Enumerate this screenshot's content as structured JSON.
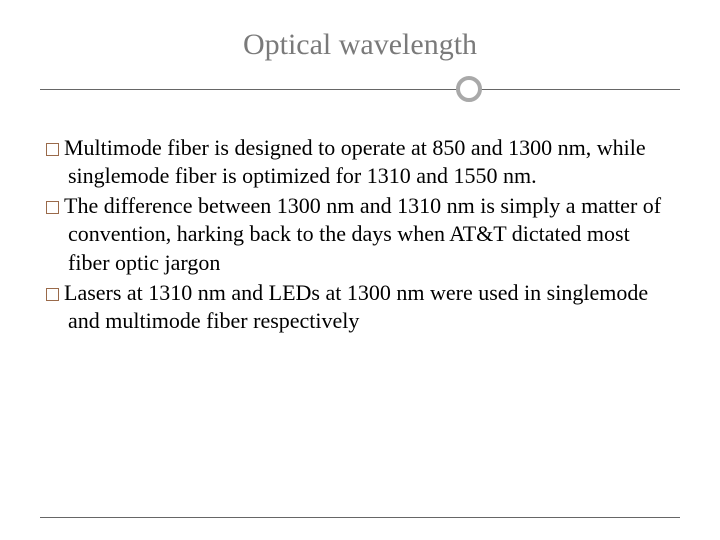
{
  "slide": {
    "title": "Optical wavelength",
    "title_color": "#7a7a7a",
    "title_fontsize": 30,
    "divider_color": "#666666",
    "circle_border_color": "#a9a9a9",
    "circle_position_pct": 67,
    "bullet_border_color": "#9a6a4a",
    "body_fontsize": 22,
    "body_color": "#000000",
    "background_color": "#ffffff",
    "bullets": [
      "Multimode fiber is designed to operate at 850 and 1300 nm, while singlemode fiber is optimized for 1310 and 1550 nm.",
      "The difference between 1300 nm and 1310 nm is simply a matter of convention, harking back to the days when AT&T dictated most fiber optic jargon",
      "Lasers at 1310 nm and LEDs at 1300 nm were used in singlemode and multimode fiber respectively"
    ]
  }
}
